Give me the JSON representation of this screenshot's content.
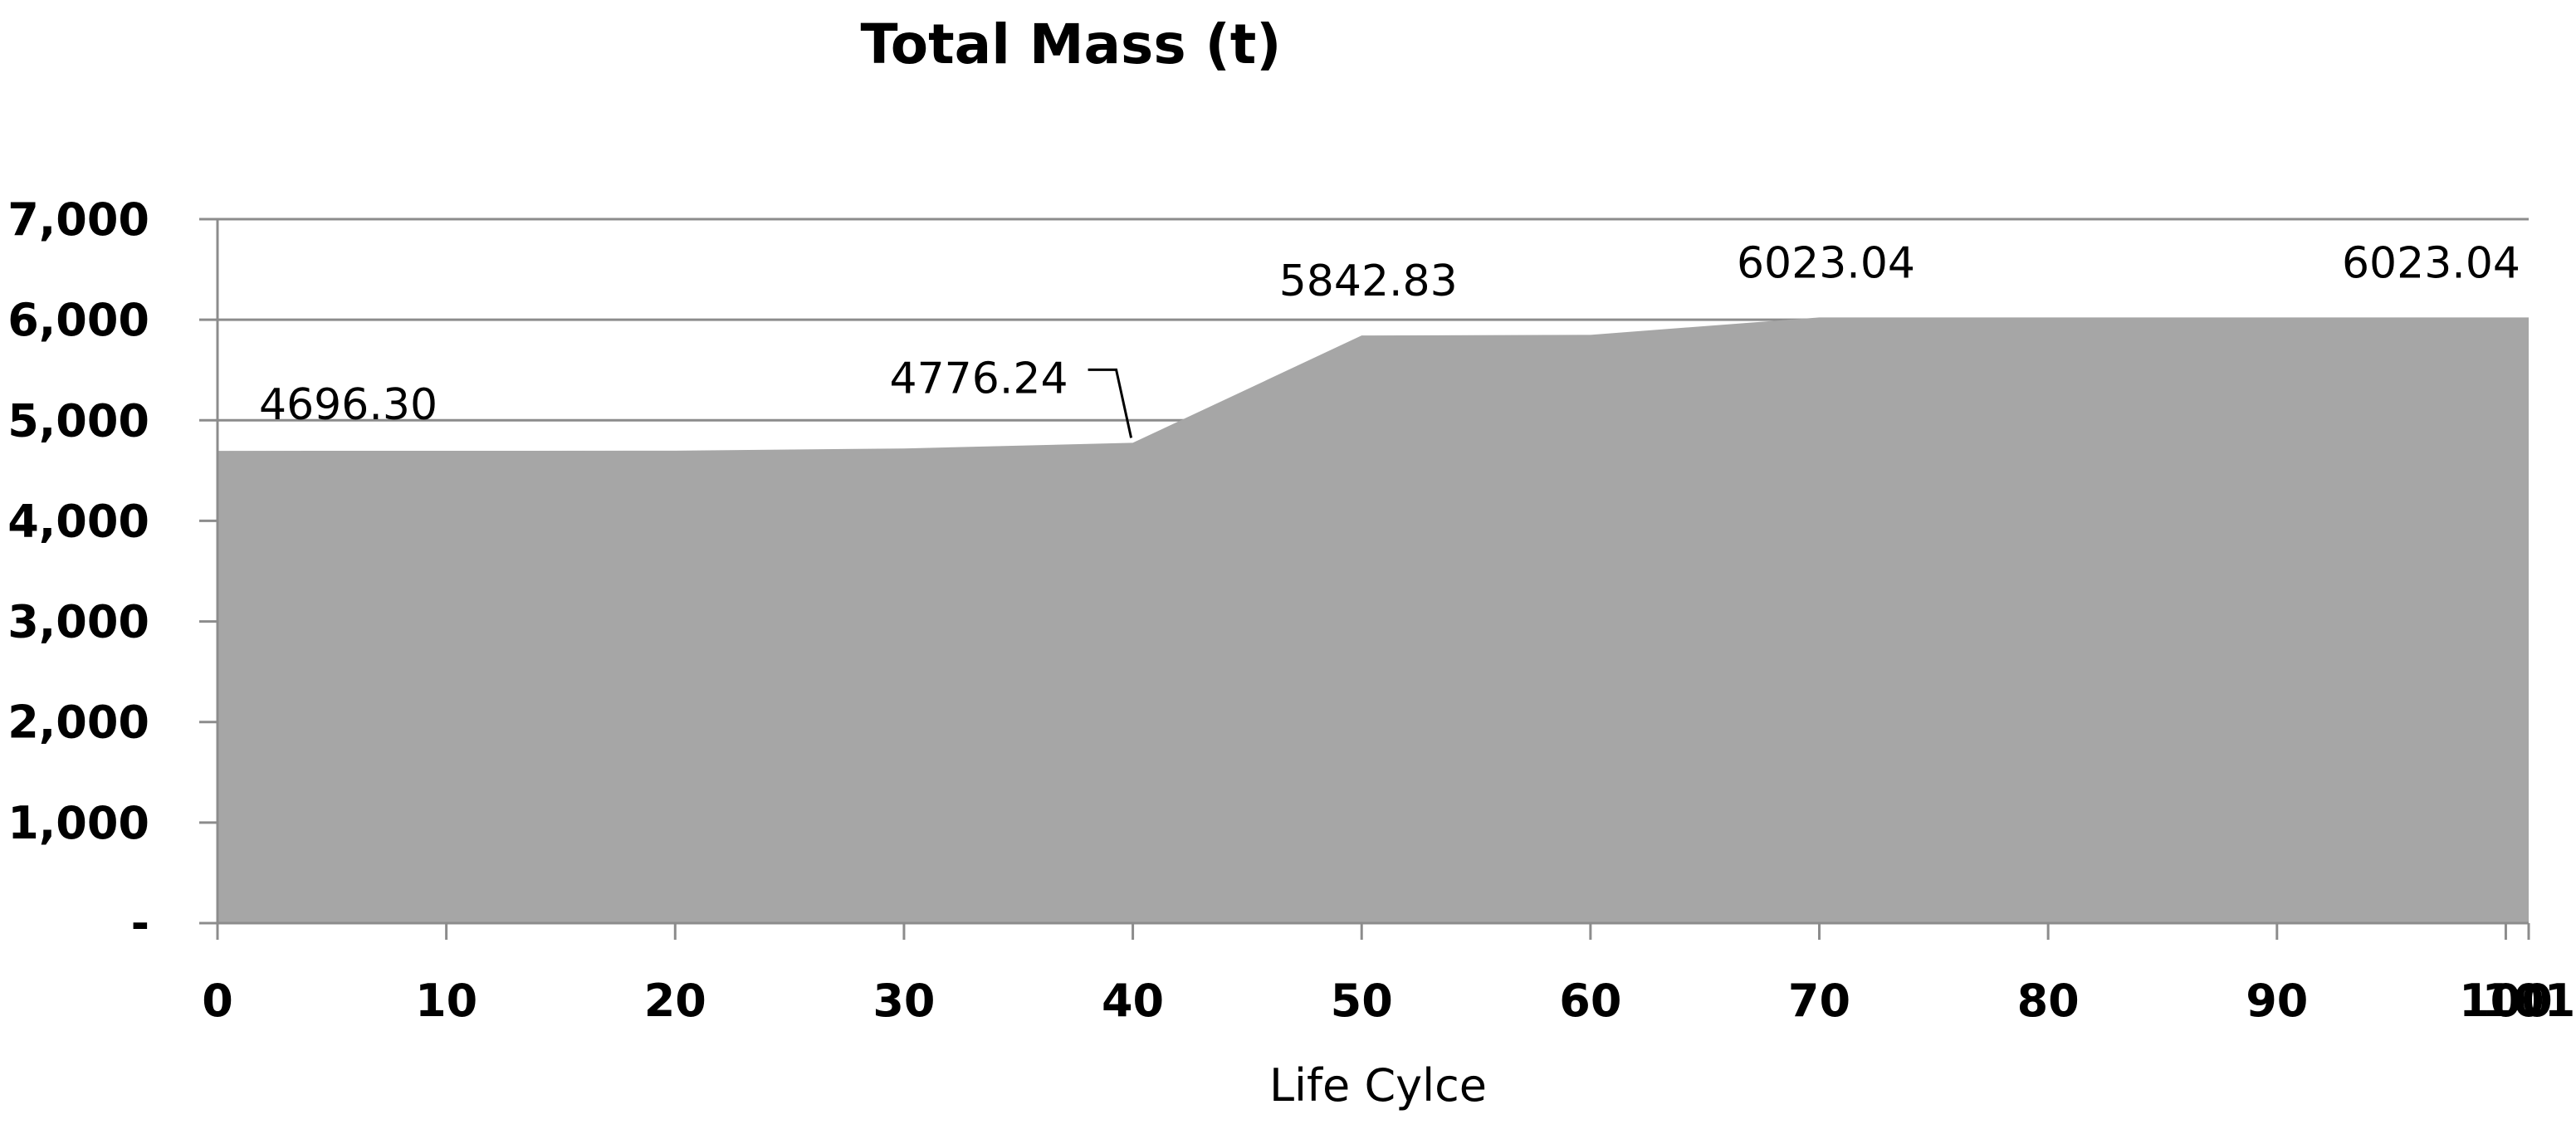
{
  "chart_data": {
    "type": "area",
    "title": "Total Mass (t)",
    "xlabel": "Life Cylce",
    "ylabel": "",
    "x": [
      0,
      10,
      20,
      30,
      40,
      50,
      60,
      70,
      80,
      90,
      100,
      101
    ],
    "x_tick_labels": [
      "0",
      "10",
      "20",
      "30",
      "40",
      "50",
      "60",
      "70",
      "80",
      "90",
      "100",
      "101"
    ],
    "series": [
      {
        "name": "Total Mass (t)",
        "values": [
          4696.3,
          4697,
          4698,
          4720,
          4776.24,
          5842.83,
          5850,
          6023.04,
          6023.04,
          6023.04,
          6023.04,
          6023.04
        ]
      }
    ],
    "y_ticks": [
      0,
      1000,
      2000,
      3000,
      4000,
      5000,
      6000,
      7000
    ],
    "y_tick_labels": [
      "-",
      "1,000",
      "2,000",
      "3,000",
      "4,000",
      "5,000",
      "6,000",
      "7,000"
    ],
    "ylim": [
      0,
      7000
    ],
    "grid": true,
    "data_labels": [
      {
        "index": 0,
        "text": "4696.30"
      },
      {
        "index": 4,
        "text": "4776.24"
      },
      {
        "index": 5,
        "text": "5842.83"
      },
      {
        "index": 7,
        "text": "6023.04"
      },
      {
        "index": 11,
        "text": "6023.04"
      }
    ],
    "colors": {
      "area": "#a6a6a6",
      "grid": "#8c8c8c",
      "axis": "#8c8c8c",
      "text": "#000000"
    }
  }
}
